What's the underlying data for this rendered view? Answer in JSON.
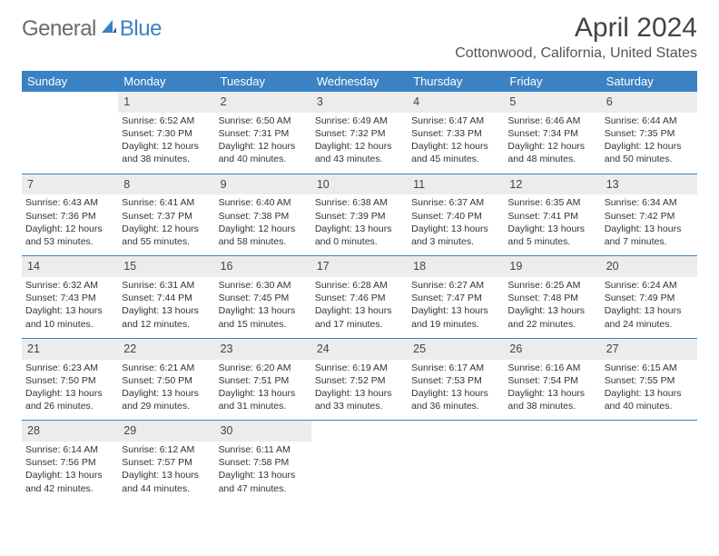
{
  "logo": {
    "part1": "General",
    "part2": "Blue"
  },
  "title": {
    "month_year": "April 2024",
    "location": "Cottonwood, California, United States"
  },
  "colors": {
    "header_bg": "#3b82c4",
    "header_fg": "#ffffff",
    "daynum_bg": "#ececec",
    "rule": "#3b82c4",
    "text": "#333333",
    "logo_gray": "#6b6b6b",
    "logo_blue": "#3b82c4",
    "page_bg": "#ffffff"
  },
  "typography": {
    "title_fontsize": 30,
    "location_fontsize": 16,
    "header_fontsize": 13,
    "daynum_fontsize": 12.5,
    "cell_fontsize": 10.5,
    "font_family": "Arial"
  },
  "weekdays": [
    "Sunday",
    "Monday",
    "Tuesday",
    "Wednesday",
    "Thursday",
    "Friday",
    "Saturday"
  ],
  "weeks": [
    {
      "nums": [
        "",
        "1",
        "2",
        "3",
        "4",
        "5",
        "6"
      ],
      "cells": [
        null,
        {
          "sunrise": "Sunrise: 6:52 AM",
          "sunset": "Sunset: 7:30 PM",
          "d1": "Daylight: 12 hours",
          "d2": "and 38 minutes."
        },
        {
          "sunrise": "Sunrise: 6:50 AM",
          "sunset": "Sunset: 7:31 PM",
          "d1": "Daylight: 12 hours",
          "d2": "and 40 minutes."
        },
        {
          "sunrise": "Sunrise: 6:49 AM",
          "sunset": "Sunset: 7:32 PM",
          "d1": "Daylight: 12 hours",
          "d2": "and 43 minutes."
        },
        {
          "sunrise": "Sunrise: 6:47 AM",
          "sunset": "Sunset: 7:33 PM",
          "d1": "Daylight: 12 hours",
          "d2": "and 45 minutes."
        },
        {
          "sunrise": "Sunrise: 6:46 AM",
          "sunset": "Sunset: 7:34 PM",
          "d1": "Daylight: 12 hours",
          "d2": "and 48 minutes."
        },
        {
          "sunrise": "Sunrise: 6:44 AM",
          "sunset": "Sunset: 7:35 PM",
          "d1": "Daylight: 12 hours",
          "d2": "and 50 minutes."
        }
      ]
    },
    {
      "nums": [
        "7",
        "8",
        "9",
        "10",
        "11",
        "12",
        "13"
      ],
      "cells": [
        {
          "sunrise": "Sunrise: 6:43 AM",
          "sunset": "Sunset: 7:36 PM",
          "d1": "Daylight: 12 hours",
          "d2": "and 53 minutes."
        },
        {
          "sunrise": "Sunrise: 6:41 AM",
          "sunset": "Sunset: 7:37 PM",
          "d1": "Daylight: 12 hours",
          "d2": "and 55 minutes."
        },
        {
          "sunrise": "Sunrise: 6:40 AM",
          "sunset": "Sunset: 7:38 PM",
          "d1": "Daylight: 12 hours",
          "d2": "and 58 minutes."
        },
        {
          "sunrise": "Sunrise: 6:38 AM",
          "sunset": "Sunset: 7:39 PM",
          "d1": "Daylight: 13 hours",
          "d2": "and 0 minutes."
        },
        {
          "sunrise": "Sunrise: 6:37 AM",
          "sunset": "Sunset: 7:40 PM",
          "d1": "Daylight: 13 hours",
          "d2": "and 3 minutes."
        },
        {
          "sunrise": "Sunrise: 6:35 AM",
          "sunset": "Sunset: 7:41 PM",
          "d1": "Daylight: 13 hours",
          "d2": "and 5 minutes."
        },
        {
          "sunrise": "Sunrise: 6:34 AM",
          "sunset": "Sunset: 7:42 PM",
          "d1": "Daylight: 13 hours",
          "d2": "and 7 minutes."
        }
      ]
    },
    {
      "nums": [
        "14",
        "15",
        "16",
        "17",
        "18",
        "19",
        "20"
      ],
      "cells": [
        {
          "sunrise": "Sunrise: 6:32 AM",
          "sunset": "Sunset: 7:43 PM",
          "d1": "Daylight: 13 hours",
          "d2": "and 10 minutes."
        },
        {
          "sunrise": "Sunrise: 6:31 AM",
          "sunset": "Sunset: 7:44 PM",
          "d1": "Daylight: 13 hours",
          "d2": "and 12 minutes."
        },
        {
          "sunrise": "Sunrise: 6:30 AM",
          "sunset": "Sunset: 7:45 PM",
          "d1": "Daylight: 13 hours",
          "d2": "and 15 minutes."
        },
        {
          "sunrise": "Sunrise: 6:28 AM",
          "sunset": "Sunset: 7:46 PM",
          "d1": "Daylight: 13 hours",
          "d2": "and 17 minutes."
        },
        {
          "sunrise": "Sunrise: 6:27 AM",
          "sunset": "Sunset: 7:47 PM",
          "d1": "Daylight: 13 hours",
          "d2": "and 19 minutes."
        },
        {
          "sunrise": "Sunrise: 6:25 AM",
          "sunset": "Sunset: 7:48 PM",
          "d1": "Daylight: 13 hours",
          "d2": "and 22 minutes."
        },
        {
          "sunrise": "Sunrise: 6:24 AM",
          "sunset": "Sunset: 7:49 PM",
          "d1": "Daylight: 13 hours",
          "d2": "and 24 minutes."
        }
      ]
    },
    {
      "nums": [
        "21",
        "22",
        "23",
        "24",
        "25",
        "26",
        "27"
      ],
      "cells": [
        {
          "sunrise": "Sunrise: 6:23 AM",
          "sunset": "Sunset: 7:50 PM",
          "d1": "Daylight: 13 hours",
          "d2": "and 26 minutes."
        },
        {
          "sunrise": "Sunrise: 6:21 AM",
          "sunset": "Sunset: 7:50 PM",
          "d1": "Daylight: 13 hours",
          "d2": "and 29 minutes."
        },
        {
          "sunrise": "Sunrise: 6:20 AM",
          "sunset": "Sunset: 7:51 PM",
          "d1": "Daylight: 13 hours",
          "d2": "and 31 minutes."
        },
        {
          "sunrise": "Sunrise: 6:19 AM",
          "sunset": "Sunset: 7:52 PM",
          "d1": "Daylight: 13 hours",
          "d2": "and 33 minutes."
        },
        {
          "sunrise": "Sunrise: 6:17 AM",
          "sunset": "Sunset: 7:53 PM",
          "d1": "Daylight: 13 hours",
          "d2": "and 36 minutes."
        },
        {
          "sunrise": "Sunrise: 6:16 AM",
          "sunset": "Sunset: 7:54 PM",
          "d1": "Daylight: 13 hours",
          "d2": "and 38 minutes."
        },
        {
          "sunrise": "Sunrise: 6:15 AM",
          "sunset": "Sunset: 7:55 PM",
          "d1": "Daylight: 13 hours",
          "d2": "and 40 minutes."
        }
      ]
    },
    {
      "nums": [
        "28",
        "29",
        "30",
        "",
        "",
        "",
        ""
      ],
      "cells": [
        {
          "sunrise": "Sunrise: 6:14 AM",
          "sunset": "Sunset: 7:56 PM",
          "d1": "Daylight: 13 hours",
          "d2": "and 42 minutes."
        },
        {
          "sunrise": "Sunrise: 6:12 AM",
          "sunset": "Sunset: 7:57 PM",
          "d1": "Daylight: 13 hours",
          "d2": "and 44 minutes."
        },
        {
          "sunrise": "Sunrise: 6:11 AM",
          "sunset": "Sunset: 7:58 PM",
          "d1": "Daylight: 13 hours",
          "d2": "and 47 minutes."
        },
        null,
        null,
        null,
        null
      ]
    }
  ]
}
